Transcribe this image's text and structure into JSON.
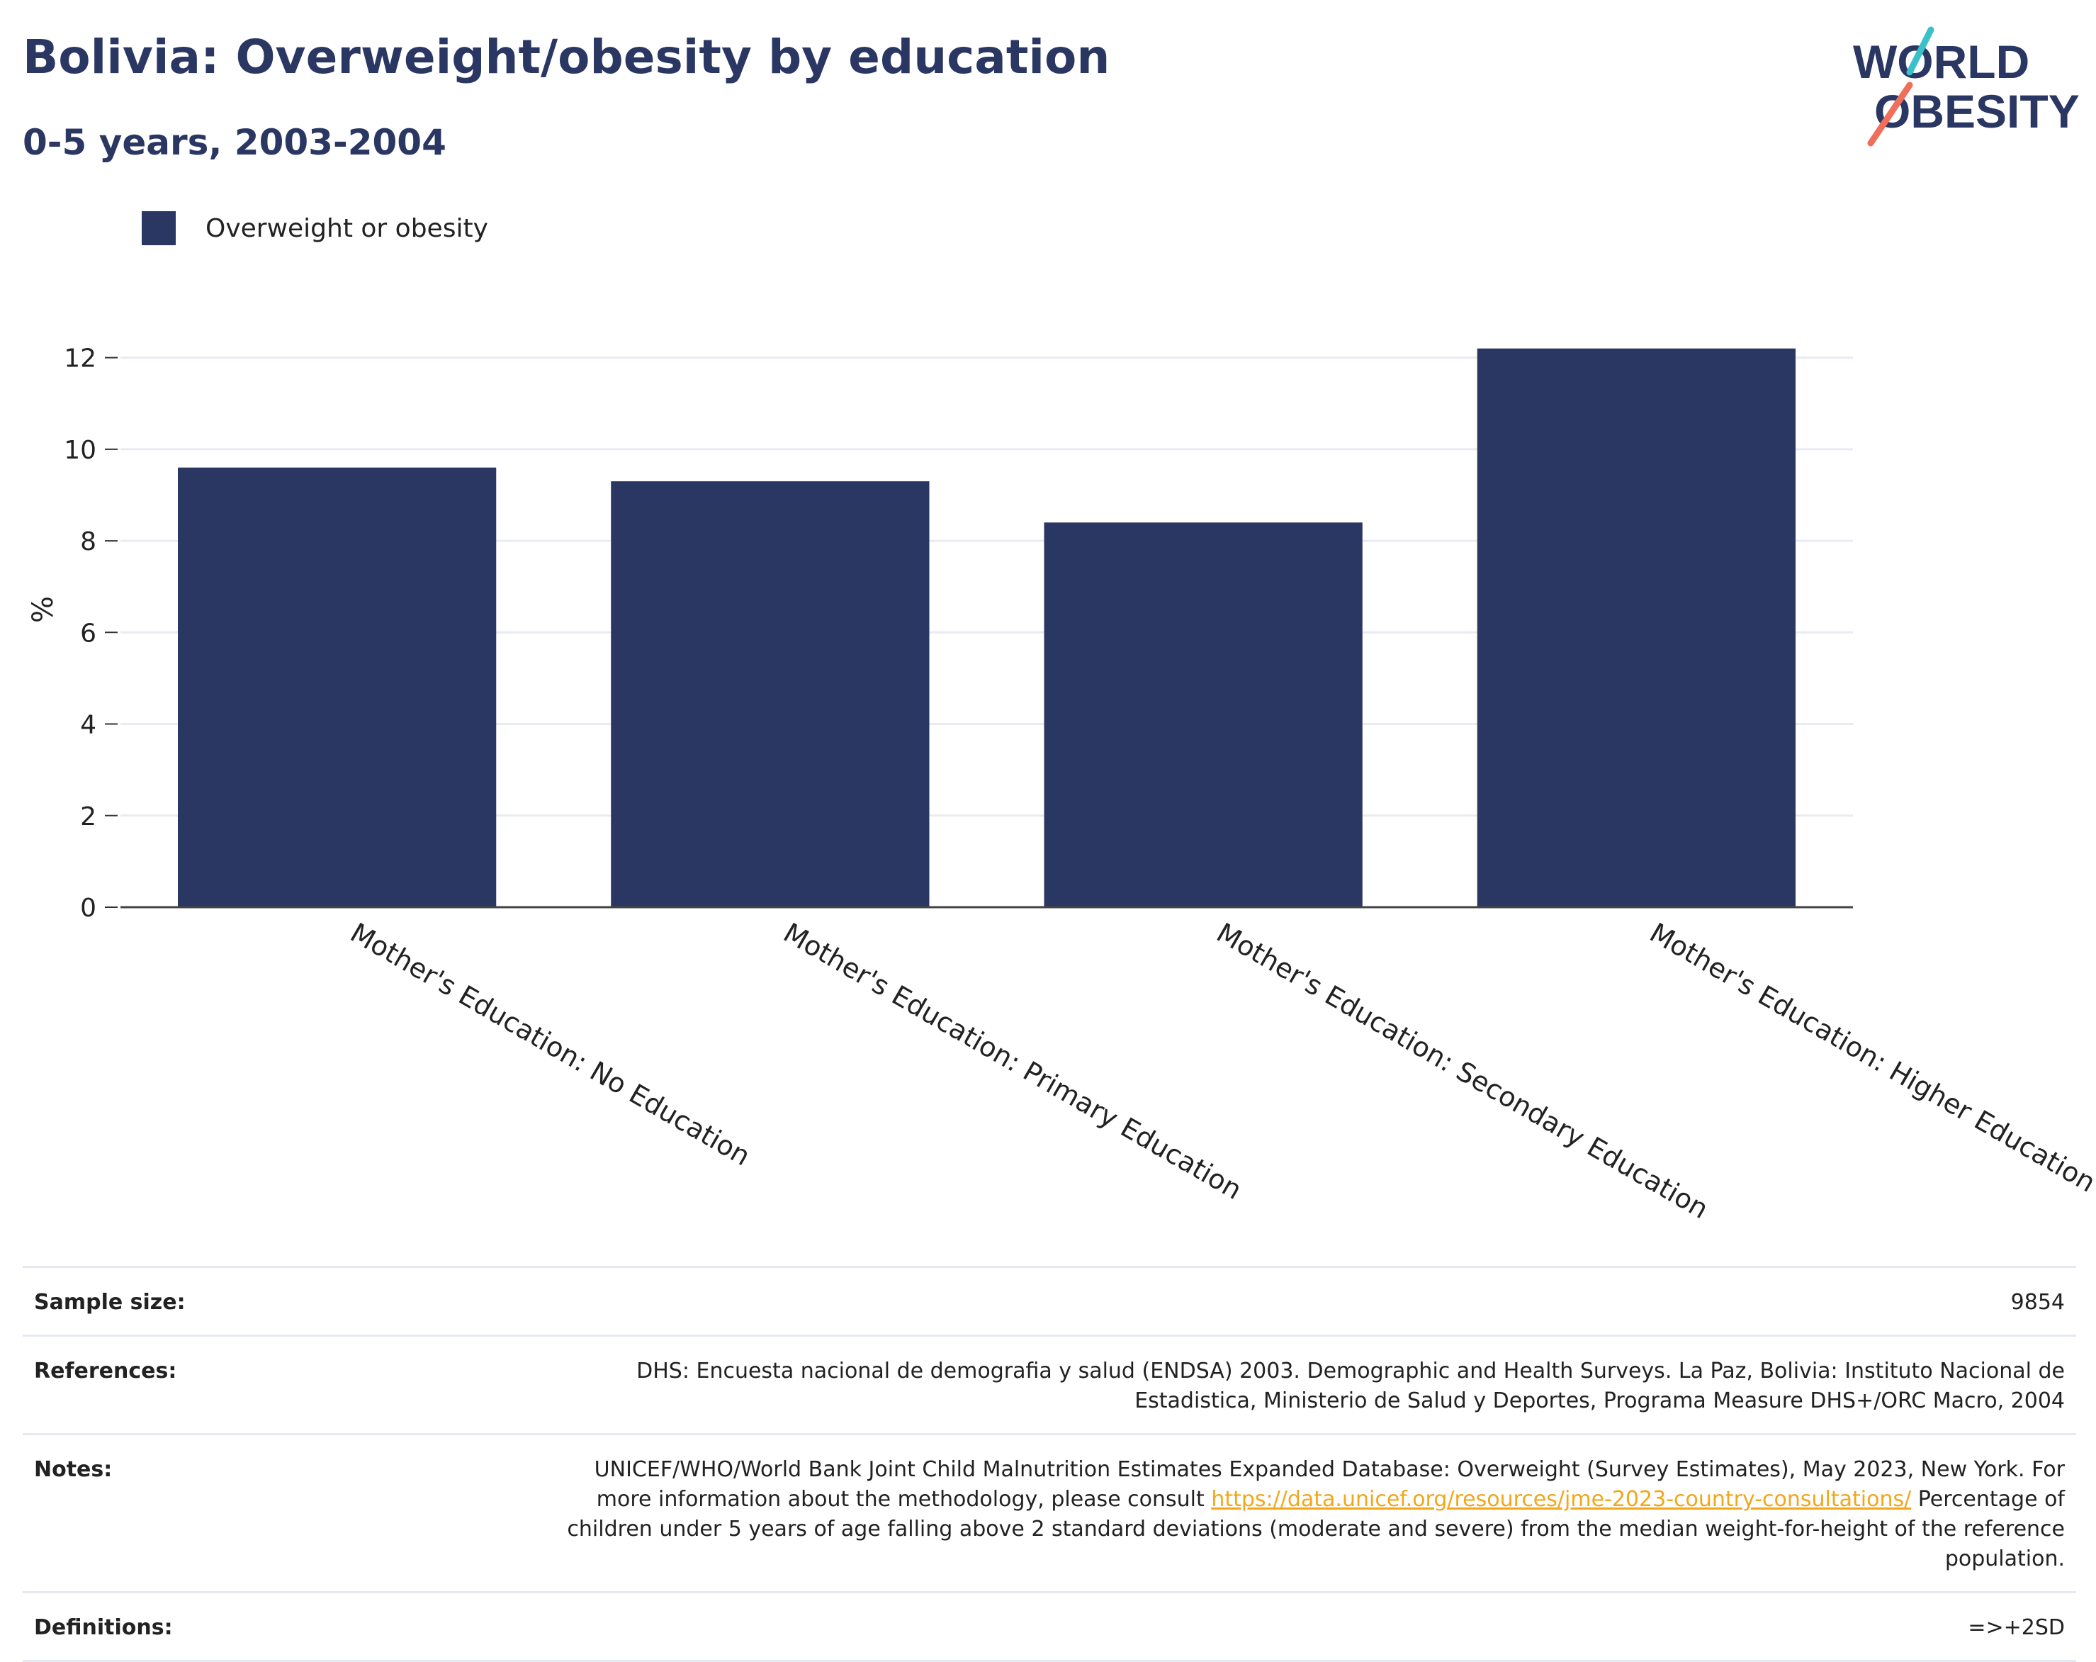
{
  "header": {
    "title": "Bolivia: Overweight/obesity by education",
    "subtitle": "0-5 years, 2003-2004"
  },
  "logo": {
    "line1": "WORLD",
    "line2": "OBESITY",
    "accent_teal": "#39c0c8",
    "accent_coral": "#ef6f5b"
  },
  "legend": {
    "label": "Overweight or obesity",
    "color": "#2b3763"
  },
  "chart_data": {
    "type": "bar",
    "categories": [
      "Mother's Education: No Education",
      "Mother's Education: Primary Education",
      "Mother's Education: Secondary Education",
      "Mother's Education: Higher Education"
    ],
    "series": [
      {
        "name": "Overweight or obesity",
        "values": [
          9.6,
          9.3,
          8.4,
          12.2
        ],
        "color": "#2b3763"
      }
    ],
    "ylabel": "%",
    "ylim": [
      0,
      13
    ],
    "yticks": [
      0,
      2,
      4,
      6,
      8,
      10,
      12
    ],
    "grid": true,
    "legend_position": "top-left"
  },
  "meta": {
    "sample_size_label": "Sample size:",
    "sample_size_value": "9854",
    "references_label": "References:",
    "references_value": "DHS: Encuesta nacional de demografia y salud (ENDSA) 2003. Demographic and Health Surveys. La Paz, Bolivia: Instituto Nacional de Estadistica, Ministerio de Salud y Deportes, Programa Measure DHS+/ORC Macro, 2004",
    "notes_label": "Notes:",
    "notes_value_before": "UNICEF/WHO/World Bank Joint Child Malnutrition Estimates Expanded Database: Overweight (Survey Estimates), May 2023, New York. For more information about the methodology, please consult ",
    "notes_link": "https://data.unicef.org/resources/jme-2023-country-consultations/",
    "notes_value_after": " Percentage of children under 5 years of age falling above 2 standard deviations (moderate and severe) from the median weight-for-height of the reference population.",
    "definitions_label": "Definitions:",
    "definitions_value": "=>+2SD"
  }
}
